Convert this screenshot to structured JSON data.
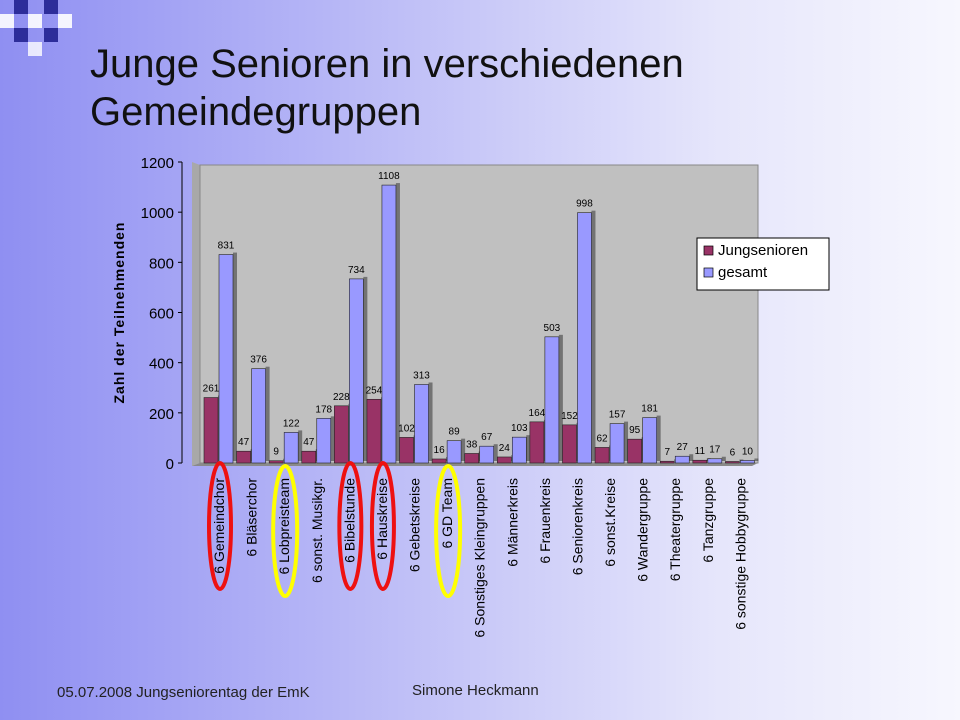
{
  "slide": {
    "title": "Junge Senioren in verschiedenen Gemeindegruppen",
    "footer_left": "05.07.2008 Jungseniorentag der EmK",
    "footer_center": "Simone Heckmann"
  },
  "colors": {
    "jung": "#993366",
    "gesamt": "#9999ff",
    "plot_bg": "#c0c0c0",
    "red_mark": "#ee1111",
    "yellow_mark": "#ffff00"
  },
  "chart_data": {
    "type": "bar",
    "ylabel": "Zahl der Teilnehmenden",
    "ylim": [
      0,
      1200
    ],
    "yticks": [
      "0",
      "200",
      "400",
      "600",
      "800",
      "1000",
      "1200"
    ],
    "grid": false,
    "legend_position": "right",
    "categories": [
      "6 Gemeindchor",
      "6 Bläserchor",
      "6 Lobpreisteam",
      "6 sonst. Musikgr.",
      "6 Bibelstunde",
      "6 Hauskreise",
      "6 Gebetskreise",
      "6 GD Team",
      "6 Sonstiges Kleingruppen",
      "6 Männerkreis",
      "6 Frauenkreis",
      "6 Seniorenkreis",
      "6 sonst.Kreise",
      "6 Wandergruppe",
      "6 Theatergruppe",
      "6 Tanzgruppe",
      "6 sonstige Hobbygruppe"
    ],
    "series": [
      {
        "name": "Jungsenioren",
        "values": [
          261,
          47,
          9,
          47,
          228,
          254,
          102,
          16,
          38,
          24,
          164,
          152,
          62,
          95,
          7,
          11,
          6
        ]
      },
      {
        "name": "gesamt",
        "values": [
          831,
          376,
          122,
          178,
          734,
          1108,
          313,
          89,
          67,
          103,
          503,
          998,
          157,
          181,
          27,
          17,
          10
        ]
      }
    ],
    "annotations": {
      "red_circled": [
        "6 Gemeindchor",
        "6 Bibelstunde",
        "6 Hauskreise"
      ],
      "yellow_circled": [
        "6 Lobpreisteam",
        "6 GD Team"
      ]
    }
  }
}
